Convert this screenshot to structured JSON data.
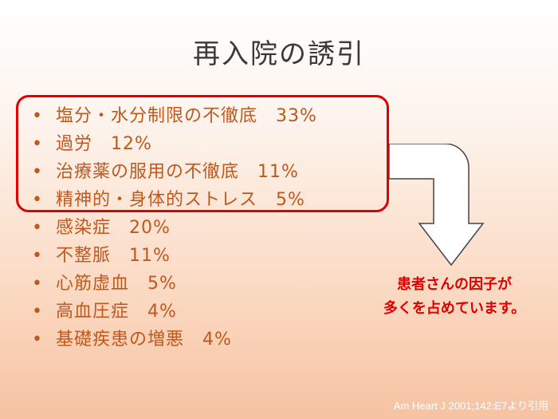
{
  "slide": {
    "title": "再入院の誘引",
    "bullet_symbol": "•",
    "items": [
      "塩分・水分制限の不徹底　33%",
      "過労　12%",
      "治療薬の服用の不徹底　11%",
      "精神的・身体的ストレス　5%",
      "感染症　20%",
      "不整脈　11%",
      "心筋虚血　5%",
      "高血圧症　4%",
      "基礎疾患の増悪　4%"
    ],
    "note_lines": [
      "患者さんの因子が",
      "多くを占めています。"
    ],
    "citation": "Am Heart J 2001;142:E7より引用"
  },
  "colors": {
    "title": "#3a3a3a",
    "bullet_text": "#c0581e",
    "highlight": "#e00000",
    "note": "#e00000",
    "background_bottom": "#f6c3a2"
  }
}
